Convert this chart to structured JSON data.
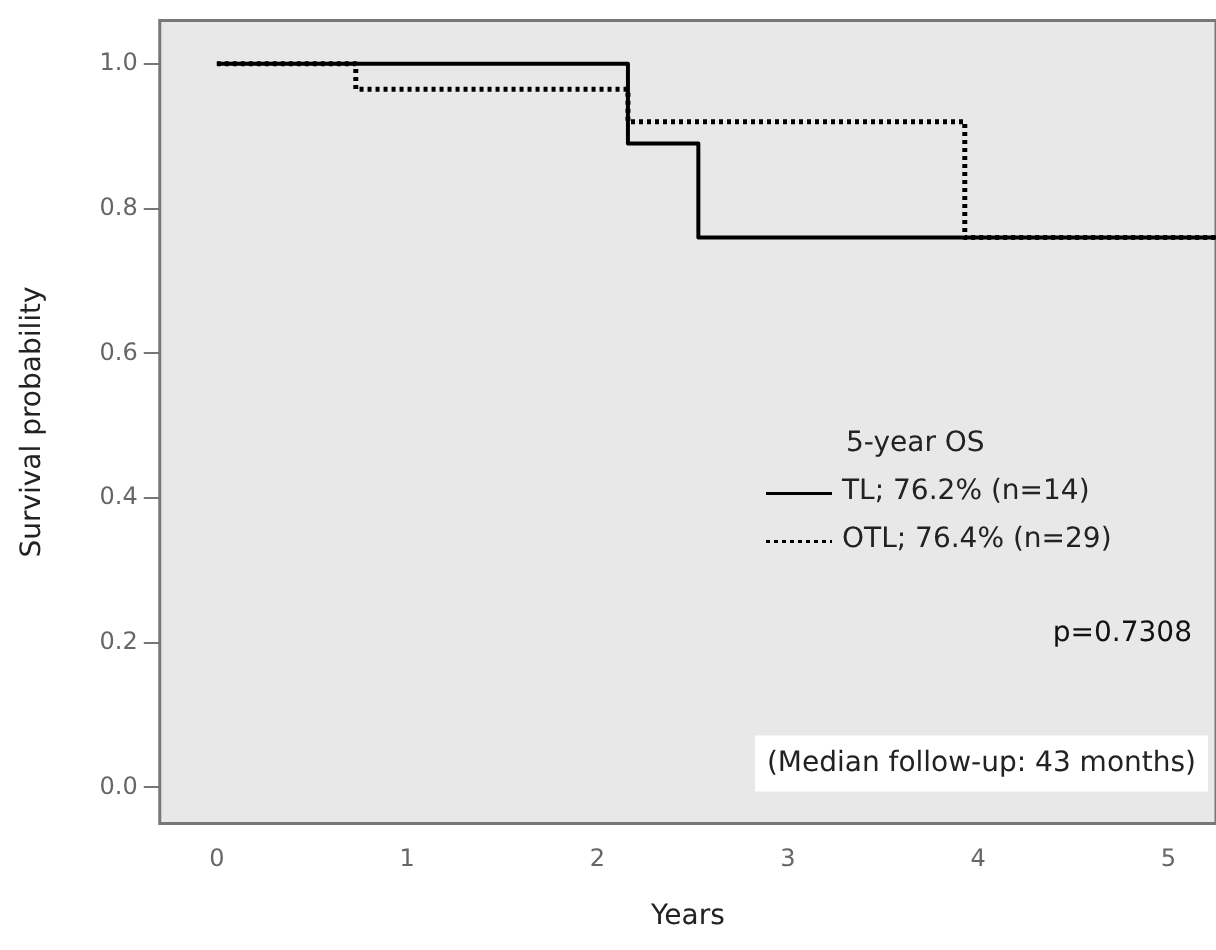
{
  "chart_data": {
    "type": "step",
    "xlabel": "Years",
    "ylabel": "Survival probability",
    "legend_title": "5-year OS",
    "legend": "bottom right",
    "xlim": [
      -0.3,
      5.25
    ],
    "xticks": [
      0,
      1,
      2,
      3,
      4,
      5
    ],
    "ylim": [
      -0.05,
      1.06
    ],
    "yticks": [
      {
        "value": 0,
        "label": "0.0"
      },
      {
        "value": 0.2,
        "label": "0.2"
      },
      {
        "value": 0.4,
        "label": "0.4"
      },
      {
        "value": 0.6,
        "label": "0.6"
      },
      {
        "value": 0.8,
        "label": "0.8"
      },
      {
        "value": 1,
        "label": "1.0"
      }
    ],
    "grid": false,
    "marker": "none",
    "series": [
      {
        "name": "TL; 76.2% (n=14)",
        "color": "#000000",
        "line_style": "solid",
        "x": [
          0,
          2.16,
          2.53,
          5.25
        ],
        "values": [
          1,
          0.89,
          0.76,
          0.76
        ]
      },
      {
        "name": "OTL; 76.4% (n=29)",
        "color": "#000000",
        "line_style": "dotted",
        "x": [
          0,
          0.73,
          2.16,
          3.93,
          5.25
        ],
        "values": [
          1,
          0.965,
          0.92,
          0.76,
          0.76
        ]
      }
    ],
    "annotations": [
      "p=0.7308",
      "(Median follow-up: 43 months)"
    ]
  }
}
